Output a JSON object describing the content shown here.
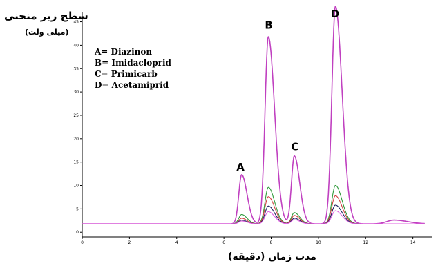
{
  "chart_data": {
    "type": "line",
    "title": "",
    "ylabel": "سطح زیر منحنی",
    "yunit": "(میلی ولت)",
    "xlabel": "مدت زمان (دقیقه)",
    "xlim": [
      0,
      14.8
    ],
    "ylim": [
      -1,
      47
    ],
    "x_ticks": [
      0,
      2,
      4,
      6,
      8,
      10,
      12,
      14
    ],
    "y_ticks": [
      0,
      5,
      10,
      15,
      20,
      25,
      30,
      35,
      40,
      45
    ],
    "baseline": 1.8,
    "legend_placement": "top-left",
    "legend": [
      "A= Diazinon",
      "B= Imidacloprid",
      "C= Primicarb",
      "D= Acetamiprid"
    ],
    "peak_labels": [
      {
        "label": "A",
        "x": 6.7,
        "y": 13.2
      },
      {
        "label": "B",
        "x": 7.9,
        "y": 43.5
      },
      {
        "label": "C",
        "x": 9.0,
        "y": 17.5
      },
      {
        "label": "D",
        "x": 10.7,
        "y": 46.0
      }
    ],
    "series": [
      {
        "color": "#c040c0",
        "peaks": [
          {
            "x": 6.75,
            "h": 10.5,
            "w": 0.12
          },
          {
            "x": 7.88,
            "h": 40.0,
            "w": 0.14
          },
          {
            "x": 8.98,
            "h": 14.5,
            "w": 0.12
          },
          {
            "x": 10.72,
            "h": 46.5,
            "w": 0.15
          },
          {
            "x": 13.2,
            "h": 0.8,
            "w": 0.3
          }
        ]
      },
      {
        "color": "#2e9a3a",
        "peaks": [
          {
            "x": 6.75,
            "h": 2.0,
            "w": 0.12
          },
          {
            "x": 7.88,
            "h": 7.8,
            "w": 0.14
          },
          {
            "x": 8.98,
            "h": 2.4,
            "w": 0.12
          },
          {
            "x": 10.72,
            "h": 8.2,
            "w": 0.15
          }
        ]
      },
      {
        "color": "#d04040",
        "peaks": [
          {
            "x": 6.75,
            "h": 1.2,
            "w": 0.12
          },
          {
            "x": 7.88,
            "h": 5.8,
            "w": 0.14
          },
          {
            "x": 8.98,
            "h": 1.8,
            "w": 0.12
          },
          {
            "x": 10.72,
            "h": 6.0,
            "w": 0.15
          }
        ]
      },
      {
        "color": "#202060",
        "peaks": [
          {
            "x": 6.75,
            "h": 0.8,
            "w": 0.12
          },
          {
            "x": 7.88,
            "h": 3.8,
            "w": 0.14
          },
          {
            "x": 8.98,
            "h": 1.2,
            "w": 0.12
          },
          {
            "x": 10.72,
            "h": 4.0,
            "w": 0.15
          }
        ]
      },
      {
        "color": "#e060e0",
        "peaks": [
          {
            "x": 6.75,
            "h": 0.6,
            "w": 0.12
          },
          {
            "x": 7.88,
            "h": 2.6,
            "w": 0.14
          },
          {
            "x": 8.98,
            "h": 0.9,
            "w": 0.12
          },
          {
            "x": 10.72,
            "h": 2.8,
            "w": 0.15
          }
        ]
      }
    ]
  }
}
